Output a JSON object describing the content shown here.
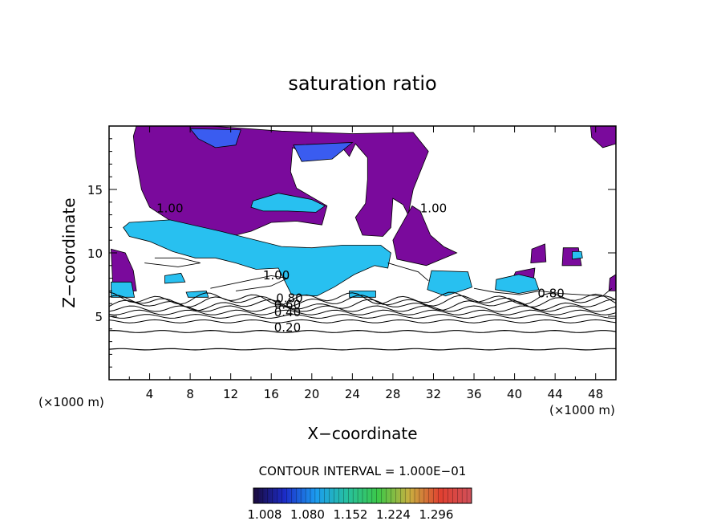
{
  "chart_data": {
    "type": "heatmap",
    "title": "saturation ratio",
    "xlabel": "X−coordinate",
    "ylabel": "Z−coordinate",
    "x_unit": "(×1000 m)",
    "xlim": [
      0,
      50
    ],
    "ylim": [
      0,
      20
    ],
    "x_ticks": [
      4,
      8,
      12,
      16,
      20,
      24,
      28,
      32,
      36,
      40,
      44,
      48
    ],
    "x_tick_labels": [
      "4",
      "8",
      "12",
      "16",
      "20",
      "24",
      "28",
      "32",
      "36",
      "40",
      "44",
      "48"
    ],
    "y_ticks": [
      5,
      10,
      15
    ],
    "y_tick_labels": [
      "5",
      "10",
      "15"
    ],
    "contour_interval_text": "CONTOUR INTERVAL = 1.000E−01",
    "contour_levels_labeled": [
      0.2,
      0.4,
      0.6,
      0.8,
      1.0
    ],
    "contour_labels": [
      {
        "text": "0.20",
        "x": 17.6,
        "y": 3.8
      },
      {
        "text": "0.40",
        "x": 17.6,
        "y": 5.0
      },
      {
        "text": "0.60",
        "x": 17.6,
        "y": 5.6
      },
      {
        "text": "0.80",
        "x": 17.8,
        "y": 6.1
      },
      {
        "text": "0.80",
        "x": 43.6,
        "y": 6.5
      },
      {
        "text": "1.00",
        "x": 16.5,
        "y": 7.9
      },
      {
        "text": "1.00",
        "x": 6.0,
        "y": 13.2
      },
      {
        "text": "1.00",
        "x": 32.0,
        "y": 13.2
      }
    ],
    "colorbar": {
      "ticks": [
        "1.008",
        "1.080",
        "1.152",
        "1.224",
        "1.296"
      ],
      "colors": [
        "#1a0a3c",
        "#1c2cc8",
        "#1c9cf0",
        "#26c0a0",
        "#3cc848",
        "#c8b040",
        "#e04030",
        "#d0505a"
      ]
    },
    "fill_colors": {
      "supersat_low": "#7a0a9c",
      "supersat_mid": "#3a5cf0",
      "supersat_high": "#28c0f0",
      "contour": "#000000"
    }
  }
}
